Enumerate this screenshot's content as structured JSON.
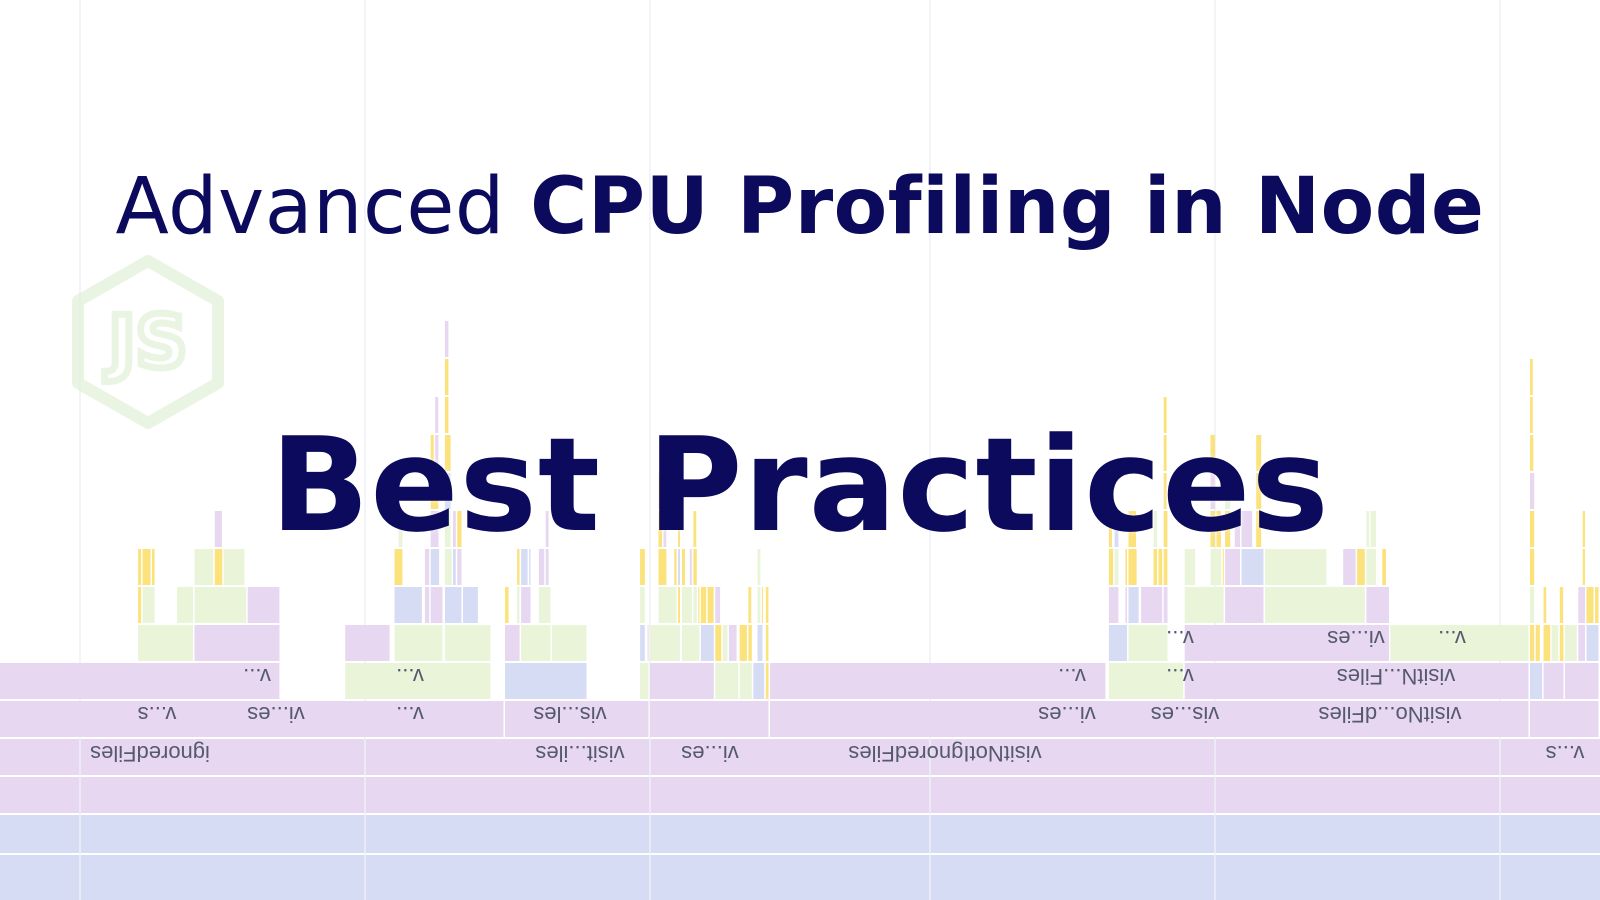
{
  "title": {
    "line1_light": "Advanced",
    "line1_bold": "CPU Profiling in Node",
    "line2": "Best Practices"
  },
  "logo": {
    "icon": "nodejs-hexagon-logo",
    "lettering": "JS"
  },
  "flame_graph": {
    "colors": {
      "purple": "#e8d7f1",
      "blue": "#d6dcf4",
      "green": "#e9f4d8",
      "yellow": "#fbe27a",
      "divider": "#ffffff",
      "text": "#0b0a5c"
    },
    "frame_labels": [
      "ignoredFiles",
      "visit...iles",
      "vi...es",
      "visitNotIgnoredFiles",
      "v...s",
      "v...s",
      "vi...es",
      "v...",
      "vis...les",
      "vi...es",
      "vis...es",
      "visitNo...dFiles",
      "v...",
      "v...",
      "v...",
      "v...",
      "visitN...Files",
      "v...",
      "vi...es",
      "v..."
    ]
  }
}
